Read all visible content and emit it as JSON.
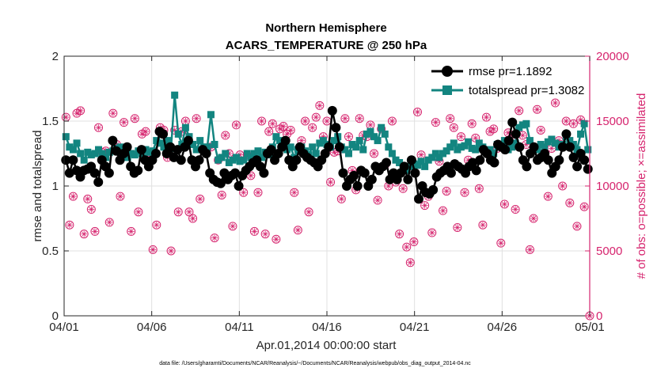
{
  "chart_data": {
    "type": "line",
    "title": "Northern Hemisphere",
    "subtitle": "ACARS_TEMPERATURE @ 250 hPa",
    "xlabel": "Apr.01,2014 00:00:00 start",
    "ylabel_left": "rmse and totalspread",
    "ylabel_right": "# of obs: o=possible; ×=assimilated",
    "footnote": "data file: /Users/gharamti/Documents/NCAR/Reanalysis/~/Documents/NCAR/Reanalysis/webpub/obs_diag_output_2014-04.nc",
    "xlim": [
      0,
      30
    ],
    "ylim_left": [
      0,
      2
    ],
    "ylim_right": [
      0,
      20000
    ],
    "x_ticks": [
      0,
      5,
      10,
      15,
      20,
      25,
      30
    ],
    "x_tick_labels": [
      "04/01",
      "04/06",
      "04/11",
      "04/16",
      "04/21",
      "04/26",
      "05/01"
    ],
    "y_left_ticks": [
      0,
      0.5,
      1,
      1.5,
      2
    ],
    "y_left_tick_labels": [
      "0",
      "0.5",
      "1",
      "1.5",
      "2"
    ],
    "y_right_ticks": [
      0,
      5000,
      10000,
      15000,
      20000
    ],
    "y_right_tick_labels": [
      "0",
      "5000",
      "10000",
      "15000",
      "20000"
    ],
    "grid": true,
    "legend_position": "top-right",
    "colors": {
      "rmse": "#000000",
      "totalspread": "#138580",
      "obs": "#d6246e",
      "grid": "#e0e0e0"
    },
    "series": [
      {
        "name": "rmse pr=1.1892",
        "axis": "left",
        "marker": "circle",
        "values": [
          1.2,
          1.1,
          1.2,
          1.12,
          1.07,
          1.12,
          1.13,
          1.15,
          1.1,
          1.03,
          1.2,
          1.15,
          1.1,
          1.35,
          1.27,
          1.2,
          1.25,
          1.3,
          1.15,
          1.1,
          1.12,
          1.28,
          1.2,
          1.15,
          1.2,
          1.25,
          1.42,
          1.4,
          1.25,
          1.3,
          1.22,
          1.28,
          1.2,
          1.3,
          1.35,
          1.2,
          1.15,
          1.2,
          1.28,
          1.25,
          1.1,
          1.05,
          1.03,
          1.02,
          1.1,
          1.05,
          1.08,
          1.1,
          1.0,
          1.08,
          1.12,
          1.15,
          1.18,
          1.2,
          1.15,
          1.1,
          1.25,
          1.28,
          1.2,
          1.25,
          1.3,
          1.35,
          1.2,
          1.15,
          1.2,
          1.3,
          1.25,
          1.22,
          1.2,
          1.18,
          1.15,
          1.2,
          1.25,
          1.3,
          1.58,
          1.45,
          1.3,
          1.1,
          1.0,
          1.05,
          1.08,
          1.0,
          1.12,
          1.1,
          1.0,
          1.05,
          1.15,
          1.12,
          1.15,
          1.18,
          1.05,
          1.1,
          1.05,
          1.1,
          1.15,
          1.05,
          1.2,
          1.1,
          0.9,
          1.0,
          0.95,
          0.94,
          0.97,
          1.07,
          1.1,
          1.12,
          1.15,
          1.1,
          1.17,
          1.15,
          1.13,
          1.1,
          1.15,
          1.18,
          1.12,
          1.2,
          1.28,
          1.25,
          1.2,
          1.18,
          1.32,
          1.3,
          1.28,
          1.35,
          1.49,
          1.4,
          1.3,
          1.2,
          1.15,
          1.25,
          1.3,
          1.2,
          1.22,
          1.25,
          1.2,
          1.1,
          1.15,
          1.2,
          1.3,
          1.4,
          1.3,
          1.22,
          1.15,
          1.25,
          1.2,
          1.13
        ]
      },
      {
        "name": "totalspread pr=1.3082",
        "axis": "left",
        "marker": "square",
        "values": [
          1.38,
          1.3,
          1.28,
          1.33,
          1.25,
          1.2,
          1.26,
          1.24,
          1.25,
          1.28,
          1.25,
          1.22,
          1.26,
          1.27,
          1.29,
          1.3,
          1.25,
          1.22,
          1.25,
          1.24,
          1.27,
          1.25,
          1.28,
          1.26,
          1.27,
          1.35,
          1.33,
          1.3,
          1.35,
          1.29,
          1.7,
          1.4,
          1.32,
          1.45,
          1.38,
          1.32,
          1.28,
          1.35,
          1.3,
          1.3,
          1.55,
          1.32,
          1.2,
          1.22,
          1.25,
          1.18,
          1.2,
          1.22,
          1.19,
          1.2,
          1.25,
          1.22,
          1.25,
          1.27,
          1.22,
          1.26,
          1.24,
          1.3,
          1.38,
          1.35,
          1.32,
          1.28,
          1.3,
          1.22,
          1.28,
          1.3,
          1.27,
          1.24,
          1.3,
          1.25,
          1.33,
          1.35,
          1.32,
          1.3,
          1.35,
          1.38,
          1.3,
          1.28,
          1.25,
          1.32,
          1.3,
          1.35,
          1.28,
          1.4,
          1.42,
          1.38,
          1.35,
          1.45,
          1.4,
          1.3,
          1.25,
          1.2,
          1.18,
          1.15,
          1.12,
          1.15,
          1.17,
          1.16,
          1.19,
          1.15,
          1.2,
          1.22,
          1.25,
          1.22,
          1.25,
          1.27,
          1.3,
          1.33,
          1.28,
          1.3,
          1.31,
          1.34,
          1.29,
          1.28,
          1.33,
          1.3,
          1.26,
          1.28,
          1.25,
          1.32,
          1.3,
          1.35,
          1.28,
          1.3,
          1.33,
          1.45,
          1.47,
          1.48,
          1.35,
          1.3,
          1.28,
          1.32,
          1.3,
          1.34,
          1.36,
          1.33,
          1.3,
          1.32,
          1.38,
          1.35,
          1.32,
          1.28,
          1.4,
          1.48,
          1.28
        ]
      },
      {
        "name": "possible observations",
        "axis": "right",
        "marker": "circle-open",
        "values": [
          15300,
          7000,
          9200,
          15600,
          15800,
          6300,
          9000,
          8200,
          6500,
          14500,
          12600,
          12700,
          7200,
          15600,
          13200,
          9200,
          14900,
          12600,
          6500,
          15200,
          8000,
          14000,
          14200,
          12200,
          5100,
          7000,
          14500,
          14300,
          12200,
          5000,
          14300,
          8000,
          14200,
          15000,
          8000,
          7500,
          15200,
          9000,
          12800,
          12900,
          13000,
          6000,
          12000,
          9300,
          13900,
          12500,
          6900,
          14700,
          12400,
          9500,
          12400,
          10800,
          6500,
          9500,
          15000,
          6300,
          14200,
          14800,
          5900,
          14400,
          14600,
          14000,
          14300,
          9500,
          6600,
          13500,
          15000,
          8000,
          14500,
          15300,
          16200,
          13800,
          15000,
          10300,
          12600,
          12700,
          9000,
          15200,
          13800,
          11200,
          9700,
          15200,
          13900,
          13800,
          14700,
          12500,
          8900,
          14400,
          11600,
          10000,
          15000,
          10300,
          6300,
          9800,
          5300,
          4100,
          5700,
          15700,
          12400,
          8500,
          9200,
          6400,
          14900,
          11900,
          8100,
          9600,
          15200,
          14500,
          6800,
          13800,
          9500,
          12000,
          14800,
          13700,
          9800,
          7000,
          15300,
          14200,
          14400,
          12900,
          5600,
          8600,
          14100,
          13700,
          8200,
          15800,
          13900,
          13200,
          5100,
          7500,
          15900,
          14300,
          12600,
          9200,
          12900,
          16400,
          13500,
          10000,
          15000,
          8700,
          14800,
          6900,
          15100,
          8400,
          0
        ]
      }
    ]
  }
}
